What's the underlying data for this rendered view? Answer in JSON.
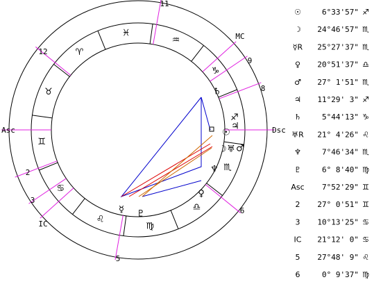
{
  "wheel": {
    "houses": [
      "11",
      "MC",
      "9",
      "8",
      "Dsc",
      "6",
      "5",
      "IC",
      "3",
      "2",
      "Asc",
      "12"
    ],
    "signs": [
      "♈",
      "♉",
      "♊",
      "♋",
      "♌",
      "♍",
      "♎",
      "♏",
      "♐",
      "♑",
      "♒",
      "♓"
    ],
    "planets": [
      "♄",
      "♃",
      "☉",
      "☽",
      "♅",
      "♂",
      "♆",
      "♀",
      "☿",
      "♇"
    ]
  },
  "table": {
    "rows": [
      [
        "☉",
        "6°33'57\"",
        "♐"
      ],
      [
        "☽",
        "24°46'57\"",
        "♏"
      ],
      [
        "☿R",
        "25°27'37\"",
        "♏"
      ],
      [
        "♀",
        "20°51'37\"",
        "♎"
      ],
      [
        "♂",
        "27° 1'51\"",
        "♏"
      ],
      [
        "♃",
        "11°29' 3\"",
        "♐"
      ],
      [
        "♄",
        "5°44'13\"",
        "♑"
      ],
      [
        "♅R",
        "21° 4'26\"",
        "♌"
      ],
      [
        "♆",
        "7°46'34\"",
        "♏"
      ],
      [
        "♇",
        "6° 8'40\"",
        "♍"
      ],
      [
        "Asc",
        "7°52'29\"",
        "♊"
      ],
      [
        "2",
        "27° 0'51\"",
        "♊"
      ],
      [
        "3",
        "10°13'25\"",
        "♋"
      ],
      [
        "IC",
        "21°12' 0\"",
        "♋"
      ],
      [
        "5",
        "27°48' 9\"",
        "♌"
      ],
      [
        "6",
        "0° 9'37\"",
        "♍"
      ]
    ]
  }
}
